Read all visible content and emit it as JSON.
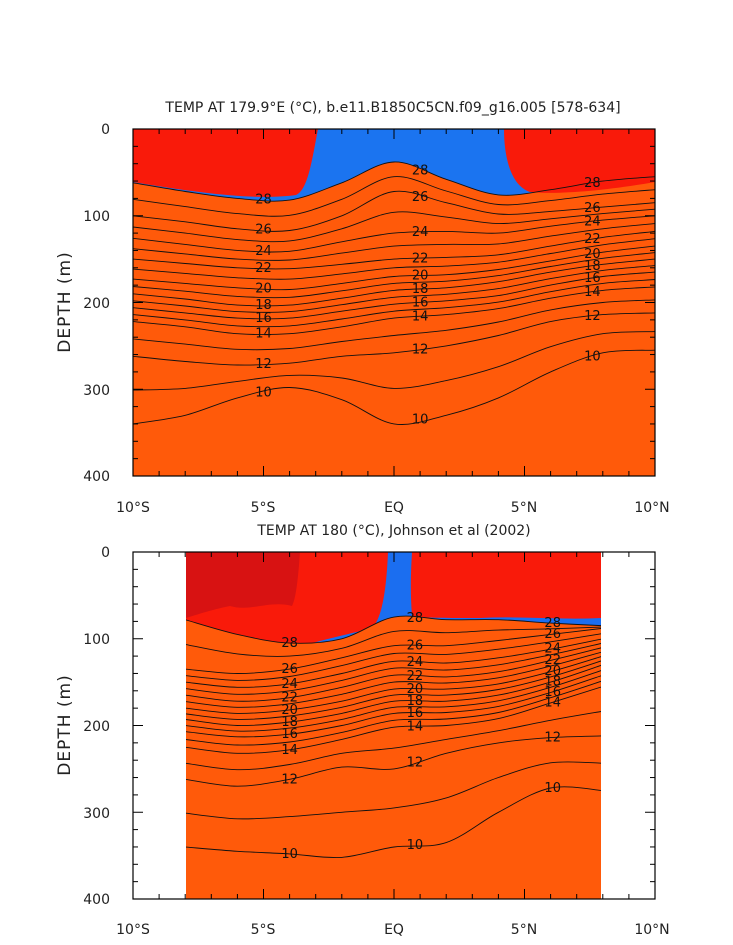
{
  "chart_data": [
    {
      "type": "contour",
      "title": "TEMP AT 179.9°E (°C), b.e11.B1850C5CN.f09_g16.005 [578-634]",
      "ylabel": "DEPTH (m)",
      "xlabel": "",
      "xlim": [
        -10,
        10
      ],
      "ylim": [
        400,
        0
      ],
      "x_tick_labels": [
        "10°S",
        "5°S",
        "EQ",
        "5°N",
        "10°N"
      ],
      "y_tick_labels": [
        "0",
        "100",
        "200",
        "300",
        "400"
      ],
      "data_x_range": [
        -10,
        10
      ],
      "contour_levels": [
        28,
        26,
        24,
        22,
        20,
        18,
        16,
        14,
        12,
        10
      ],
      "visible_contour_labels": [
        "28",
        "28",
        "26",
        "26",
        "26",
        "24",
        "24",
        "24",
        "22",
        "22",
        "22",
        "20",
        "20",
        "20",
        "18",
        "18",
        "18",
        "16",
        "16",
        "16",
        "14",
        "14",
        "14",
        "12",
        "12",
        "12",
        "10",
        "10",
        "10"
      ],
      "isotherm_depths_m": {
        "x": [
          -10,
          -8,
          -6,
          -4,
          -2,
          0,
          2,
          4,
          6,
          8,
          10
        ],
        "28": [
          62,
          72,
          80,
          82,
          62,
          38,
          58,
          76,
          70,
          60,
          55
        ],
        "26": [
          100,
          107,
          115,
          117,
          100,
          72,
          85,
          98,
          95,
          90,
          85
        ],
        "24": [
          126,
          133,
          140,
          141,
          130,
          120,
          118,
          120,
          112,
          105,
          100
        ],
        "22": [
          150,
          155,
          160,
          161,
          156,
          150,
          148,
          145,
          135,
          125,
          118
        ],
        "20": [
          173,
          178,
          183,
          185,
          178,
          170,
          168,
          162,
          152,
          142,
          135
        ],
        "18": [
          190,
          196,
          203,
          203,
          195,
          186,
          183,
          176,
          165,
          156,
          150
        ],
        "16": [
          206,
          212,
          218,
          218,
          210,
          202,
          198,
          192,
          180,
          170,
          165
        ],
        "14": [
          222,
          228,
          236,
          236,
          228,
          218,
          214,
          207,
          195,
          186,
          182
        ],
        "12": [
          262,
          268,
          272,
          270,
          262,
          258,
          250,
          238,
          222,
          214,
          212
        ],
        "10": [
          340,
          330,
          310,
          298,
          312,
          340,
          330,
          310,
          280,
          258,
          255
        ]
      }
    },
    {
      "type": "contour",
      "title": "TEMP AT 180 (°C), Johnson et al (2002)",
      "ylabel": "DEPTH (m)",
      "xlabel": "",
      "xlim": [
        -10,
        10
      ],
      "ylim": [
        400,
        0
      ],
      "x_tick_labels": [
        "10°S",
        "5°S",
        "EQ",
        "5°N",
        "10°N"
      ],
      "y_tick_labels": [
        "0",
        "100",
        "200",
        "300",
        "400"
      ],
      "data_x_range": [
        -8,
        8
      ],
      "contour_levels": [
        28,
        26,
        24,
        22,
        20,
        18,
        16,
        14,
        12,
        10
      ],
      "visible_contour_labels": [
        "28",
        "28",
        "26",
        "26",
        "24",
        "24",
        "22",
        "22",
        "20",
        "20",
        "18",
        "18",
        "16",
        "16",
        "14",
        "14",
        "12",
        "12",
        "12",
        "10",
        "10",
        "10"
      ],
      "isotherm_depths_m": {
        "x": [
          -8,
          -6,
          -4,
          -2,
          0,
          2,
          4,
          6,
          8
        ],
        "28": [
          78,
          95,
          105,
          100,
          75,
          78,
          78,
          82,
          85
        ],
        "26": [
          135,
          140,
          135,
          122,
          108,
          108,
          102,
          95,
          88
        ],
        "24": [
          150,
          156,
          152,
          140,
          126,
          128,
          122,
          112,
          100
        ],
        "22": [
          165,
          172,
          168,
          156,
          142,
          144,
          138,
          125,
          110
        ],
        "20": [
          180,
          186,
          182,
          172,
          158,
          158,
          152,
          138,
          120
        ],
        "18": [
          193,
          200,
          196,
          186,
          172,
          172,
          165,
          150,
          130
        ],
        "16": [
          207,
          213,
          210,
          200,
          186,
          185,
          178,
          162,
          142
        ],
        "14": [
          225,
          232,
          228,
          216,
          202,
          200,
          192,
          174,
          155
        ],
        "12": [
          262,
          270,
          262,
          248,
          250,
          232,
          220,
          214,
          212
        ],
        "10": [
          340,
          345,
          348,
          352,
          340,
          335,
          300,
          272,
          275
        ]
      }
    }
  ]
}
